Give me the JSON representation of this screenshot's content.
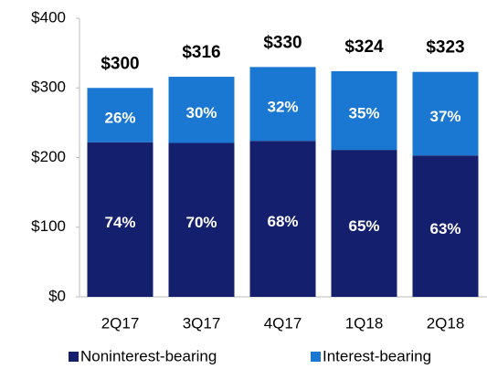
{
  "chart_data": {
    "type": "stacked_bar",
    "categories": [
      "2Q17",
      "3Q17",
      "4Q17",
      "1Q18",
      "2Q18"
    ],
    "series": [
      {
        "name": "Noninterest-bearing",
        "color": "#141f6e",
        "values": [
          222,
          221,
          224,
          211,
          203
        ],
        "share_labels": [
          "74%",
          "70%",
          "68%",
          "65%",
          "63%"
        ]
      },
      {
        "name": "Interest-bearing",
        "color": "#1a78d2",
        "values": [
          78,
          95,
          106,
          113,
          120
        ],
        "share_labels": [
          "26%",
          "30%",
          "32%",
          "35%",
          "37%"
        ]
      }
    ],
    "totals": [
      300,
      316,
      330,
      324,
      323
    ],
    "total_labels": [
      "$300",
      "$316",
      "$330",
      "$324",
      "$323"
    ],
    "ylim": [
      0,
      400
    ],
    "yticks": [
      {
        "value": 0,
        "label": "$0"
      },
      {
        "value": 100,
        "label": "$100"
      },
      {
        "value": 200,
        "label": "$200"
      },
      {
        "value": 300,
        "label": "$300"
      },
      {
        "value": 400,
        "label": "$400"
      }
    ],
    "legend": "bottom"
  }
}
